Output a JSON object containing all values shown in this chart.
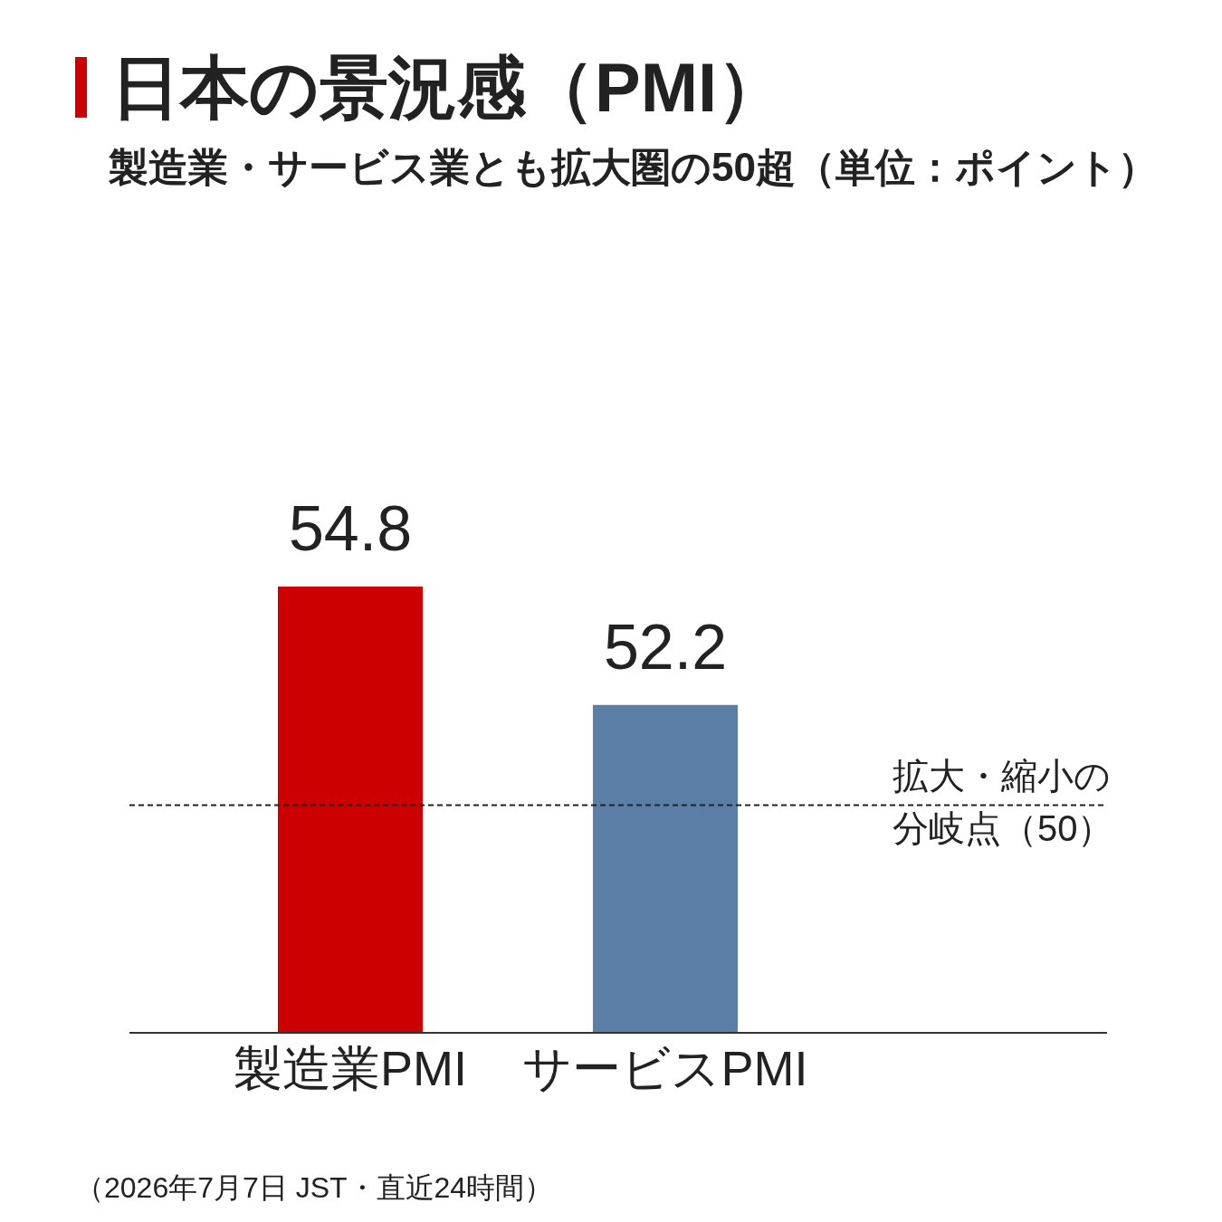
{
  "chart_data": {
    "type": "bar",
    "title": "日本の景況感（PMI）",
    "subtitle": "製造業・サービス業とも拡大圏の50超（単位：ポイント）",
    "categories": [
      "製造業PMI",
      "サービスPMI"
    ],
    "values": [
      54.8,
      52.2
    ],
    "colors": [
      "#cc0000",
      "#5b7ea6"
    ],
    "ylim": [
      45,
      54.8
    ],
    "data_labels": true,
    "tick_labels": "x",
    "ref_lines": [
      {
        "axis": "y",
        "value": 50,
        "label": "拡大・縮小の分岐点（50）",
        "color": "#222222",
        "line_style": "dashed"
      }
    ],
    "annotations": [
      "（2026年7月7日 JST・直近24時間）"
    ]
  }
}
